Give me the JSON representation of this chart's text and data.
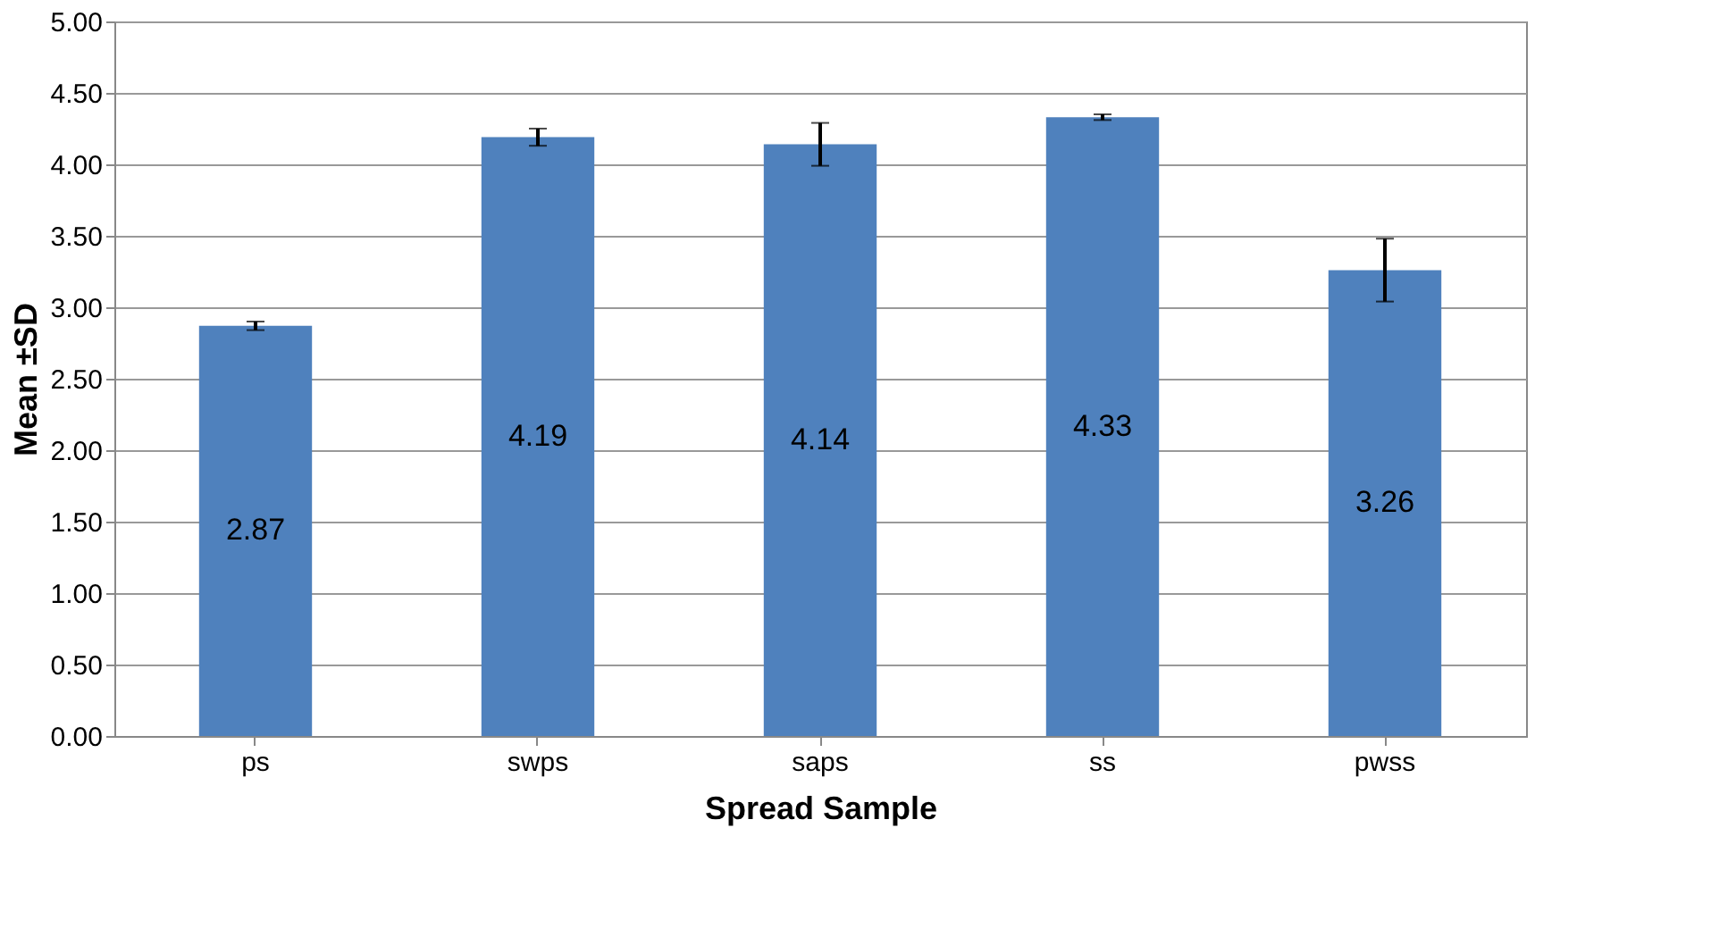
{
  "chart_data": {
    "type": "bar",
    "xlabel": "Spread Sample",
    "ylabel": "Mean ±SD",
    "categories": [
      "ps",
      "swps",
      "saps",
      "ss",
      "pwss"
    ],
    "values": [
      2.87,
      4.19,
      4.14,
      4.33,
      3.26
    ],
    "errors": [
      0.03,
      0.06,
      0.15,
      0.02,
      0.22
    ],
    "color": "#4f81bd",
    "data_labels": true,
    "ylim": [
      0,
      5
    ],
    "yticks": [
      {
        "value": 0,
        "label": "0.00"
      },
      {
        "value": 0.5,
        "label": "0.50"
      },
      {
        "value": 1,
        "label": "1.00"
      },
      {
        "value": 1.5,
        "label": "1.50"
      },
      {
        "value": 2,
        "label": "2.00"
      },
      {
        "value": 2.5,
        "label": "2.50"
      },
      {
        "value": 3,
        "label": "3.00"
      },
      {
        "value": 3.5,
        "label": "3.50"
      },
      {
        "value": 4,
        "label": "4.00"
      },
      {
        "value": 4.5,
        "label": "4.50"
      },
      {
        "value": 5,
        "label": "5.00"
      }
    ],
    "grid": "y"
  }
}
